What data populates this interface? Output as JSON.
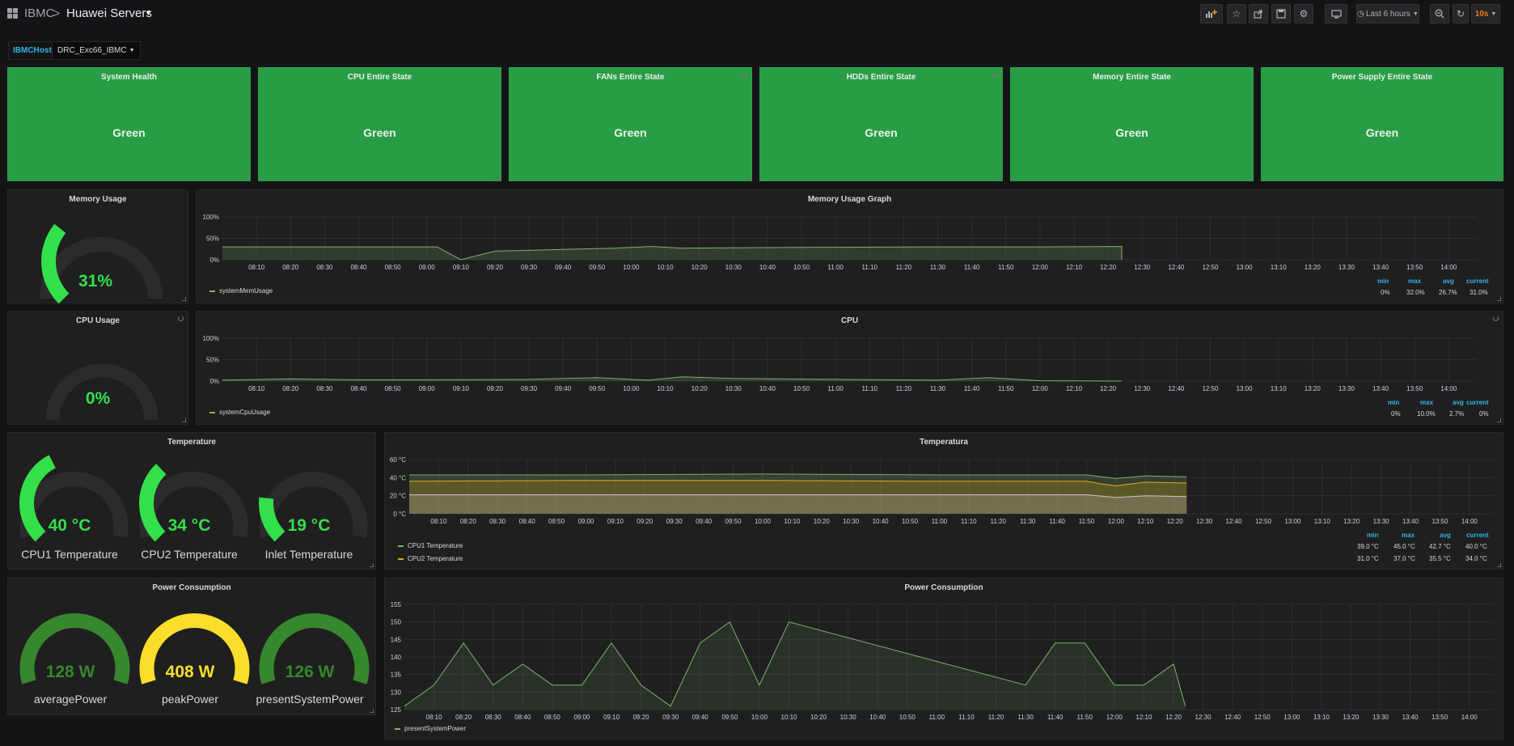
{
  "nav": {
    "root": "IBMC",
    "separator": ">",
    "title": "Huawei Servers",
    "time_range": "Last 6 hours",
    "refresh": "10s"
  },
  "variables": {
    "label": "IBMCHost",
    "value": "DRC_Exc66_IBMC"
  },
  "stats": [
    {
      "title": "System Health",
      "value": "Green"
    },
    {
      "title": "CPU Entire State",
      "value": "Green"
    },
    {
      "title": "FANs Entire State",
      "value": "Green"
    },
    {
      "title": "HDDs Entire State",
      "value": "Green"
    },
    {
      "title": "Memory Entire State",
      "value": "Green"
    },
    {
      "title": "Power Supply Entire State",
      "value": "Green"
    }
  ],
  "colors": {
    "ok": "#299c46",
    "gauge_green": "#33e04a",
    "gauge_dark_green": "#37872d",
    "gauge_yellow": "#fade2a",
    "cpu2_yellow": "#e5ac0e",
    "series_green": "#7eb26d",
    "inlet_white": "#c8c8c8"
  },
  "memory_gauge": {
    "title": "Memory Usage",
    "value": "31%",
    "percent": 31
  },
  "cpu_gauge": {
    "title": "CPU Usage",
    "value": "0%",
    "percent": 0
  },
  "temp_gauges": {
    "title": "Temperature",
    "items": [
      {
        "value": "40 °C",
        "label": "CPU1 Temperature",
        "fraction": 0.4
      },
      {
        "value": "34 °C",
        "label": "CPU2 Temperature",
        "fraction": 0.34
      },
      {
        "value": "19 °C",
        "label": "Inlet Temperature",
        "fraction": 0.19
      }
    ]
  },
  "power_gauges": {
    "title": "Power Consumption",
    "items": [
      {
        "value": "128 W",
        "label": "averagePower",
        "fraction": 1.0,
        "color": "dark"
      },
      {
        "value": "408 W",
        "label": "peakPower",
        "fraction": 1.0,
        "color": "yellow"
      },
      {
        "value": "126 W",
        "label": "presentSystemPower",
        "fraction": 1.0,
        "color": "dark"
      }
    ]
  },
  "time_ticks": [
    "08:10",
    "08:20",
    "08:30",
    "08:40",
    "08:50",
    "09:00",
    "09:10",
    "09:20",
    "09:30",
    "09:40",
    "09:50",
    "10:00",
    "10:10",
    "10:20",
    "10:30",
    "10:40",
    "10:50",
    "11:00",
    "11:10",
    "11:20",
    "11:30",
    "11:40",
    "11:50",
    "12:00",
    "12:10",
    "12:20",
    "12:30",
    "12:40",
    "12:50",
    "13:00",
    "13:10",
    "13:20",
    "13:30",
    "13:40",
    "13:50",
    "14:00"
  ],
  "stat_headers": {
    "min": "min",
    "max": "max",
    "avg": "avg",
    "current": "current"
  },
  "chart_data": [
    {
      "type": "area",
      "title": "Memory Usage Graph",
      "y_ticks": [
        "100%",
        "50%",
        "0%"
      ],
      "ylim": [
        0,
        100
      ],
      "xlim": [
        "08:00",
        "14:08"
      ],
      "series": [
        {
          "name": "systemMemUsage",
          "x": [
            "08:00",
            "09:03",
            "09:10",
            "09:20",
            "09:40",
            "09:55",
            "10:06",
            "10:15",
            "10:30",
            "11:00",
            "11:30",
            "12:00",
            "12:24",
            "12:24"
          ],
          "y": [
            30,
            30,
            0,
            20,
            24,
            27,
            31,
            27,
            28,
            29,
            30,
            30,
            31,
            0
          ],
          "stats": {
            "min": "0%",
            "max": "32.0%",
            "avg": "26.7%",
            "current": "31.0%"
          }
        }
      ]
    },
    {
      "type": "area",
      "title": "CPU",
      "y_ticks": [
        "100%",
        "50%",
        "0%"
      ],
      "ylim": [
        0,
        100
      ],
      "xlim": [
        "08:00",
        "14:08"
      ],
      "series": [
        {
          "name": "systemCpuUsage",
          "x": [
            "08:00",
            "08:20",
            "08:40",
            "09:00",
            "09:30",
            "09:50",
            "10:05",
            "10:15",
            "10:30",
            "11:00",
            "11:30",
            "11:45",
            "12:00",
            "12:24"
          ],
          "y": [
            2,
            5,
            3,
            3,
            4,
            8,
            2,
            10,
            6,
            4,
            2,
            8,
            1,
            0
          ],
          "stats": {
            "min": "0%",
            "max": "10.0%",
            "avg": "2.7%",
            "current": "0%"
          }
        }
      ]
    },
    {
      "type": "area",
      "title": "Temperatura",
      "y_ticks": [
        "60 °C",
        "40 °C",
        "20 °C",
        "0 °C"
      ],
      "ylim": [
        0,
        60
      ],
      "xlim": [
        "08:00",
        "14:08"
      ],
      "series": [
        {
          "name": "CPU1 Temperature",
          "x": [
            "08:00",
            "09:00",
            "10:00",
            "11:00",
            "11:50",
            "11:55",
            "12:00",
            "12:10",
            "12:24"
          ],
          "y": [
            43,
            43,
            44,
            43,
            43,
            41,
            39,
            42,
            41
          ],
          "stats": {
            "min": "39.0 °C",
            "max": "45.0 °C",
            "avg": "42.7 °C",
            "current": "40.0 °C"
          }
        },
        {
          "name": "CPU2 Temperature",
          "x": [
            "08:00",
            "09:00",
            "10:00",
            "11:00",
            "11:50",
            "11:55",
            "12:00",
            "12:10",
            "12:24"
          ],
          "y": [
            36,
            37,
            37,
            36,
            36,
            33,
            31,
            35,
            34
          ],
          "stats": {
            "min": "31.0 °C",
            "max": "37.0 °C",
            "avg": "35.5 °C",
            "current": "34.0 °C"
          }
        },
        {
          "name": "Inlet Temperature",
          "x": [
            "08:00",
            "09:00",
            "10:00",
            "11:00",
            "11:50",
            "12:00",
            "12:10",
            "12:24"
          ],
          "y": [
            21,
            21,
            21,
            21,
            21,
            18,
            20,
            19
          ]
        }
      ]
    },
    {
      "type": "area",
      "title": "Power Consumption",
      "y_ticks": [
        "155",
        "150",
        "145",
        "140",
        "135",
        "130",
        "125"
      ],
      "ylim": [
        125,
        155
      ],
      "xlim": [
        "08:00",
        "14:08"
      ],
      "series": [
        {
          "name": "presentSystemPower",
          "x": [
            "08:00",
            "08:10",
            "08:20",
            "08:30",
            "08:40",
            "08:50",
            "09:00",
            "09:10",
            "09:20",
            "09:30",
            "09:40",
            "09:50",
            "10:00",
            "10:10",
            "11:30",
            "11:40",
            "11:50",
            "12:00",
            "12:10",
            "12:20",
            "12:24"
          ],
          "y": [
            126,
            132,
            144,
            132,
            138,
            132,
            132,
            144,
            132,
            126,
            144,
            150,
            132,
            150,
            132,
            144,
            144,
            132,
            132,
            138,
            126
          ]
        }
      ]
    }
  ]
}
